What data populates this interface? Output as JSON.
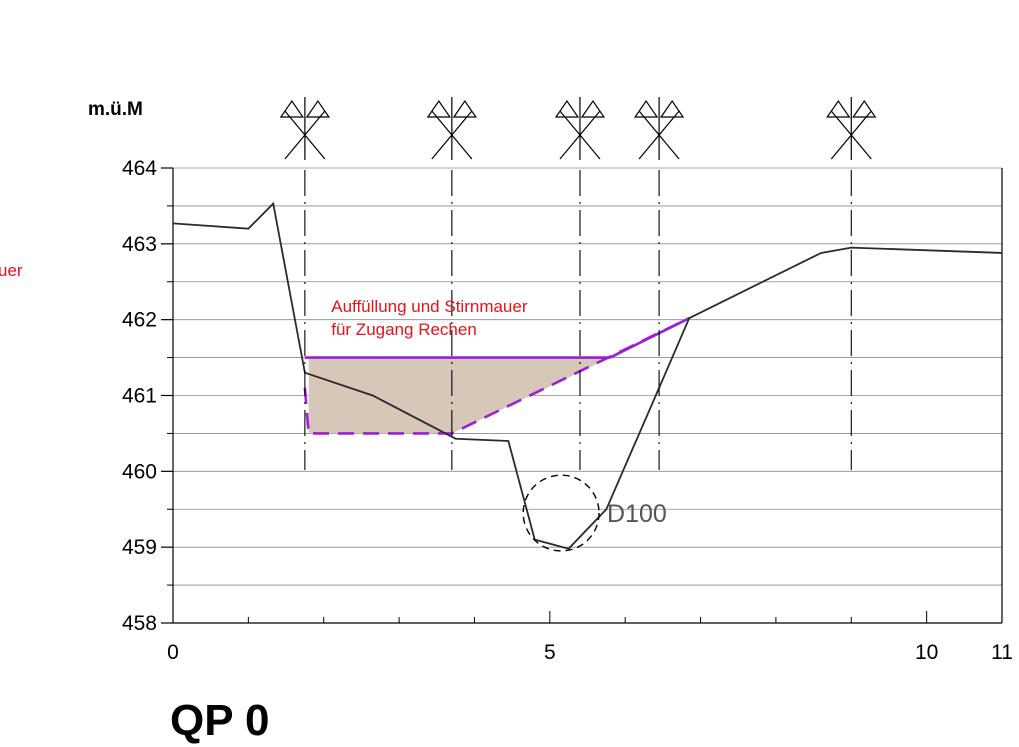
{
  "page": {
    "title": "QP 0",
    "cut_label_left": "uer"
  },
  "chart_data": {
    "type": "line",
    "ylabel": "m.ü.M",
    "xlabel": "",
    "xlim": [
      0,
      11
    ],
    "ylim": [
      458,
      464
    ],
    "x_ticks": [
      0,
      5,
      10,
      11
    ],
    "x_tick_labels": [
      "0",
      "5",
      "10",
      "11"
    ],
    "y_ticks": [
      458,
      459,
      460,
      461,
      462,
      463,
      464
    ],
    "y_tick_labels": [
      "458",
      "459",
      "460",
      "461",
      "462",
      "463",
      "464"
    ],
    "grid": true,
    "series": [
      {
        "role": "terrain",
        "color": "#2b2b2b",
        "x": [
          0,
          1.0,
          1.33,
          1.75,
          2.65,
          3.75,
          4.45,
          4.8,
          5.25,
          5.75,
          6.45,
          6.85,
          8.6,
          9.0,
          11.0
        ],
        "y": [
          463.27,
          463.2,
          463.53,
          461.3,
          461.0,
          460.43,
          460.4,
          459.1,
          458.98,
          459.5,
          461.1,
          462.02,
          462.88,
          462.95,
          462.88
        ]
      },
      {
        "role": "fill-top",
        "color": "#9b1fd6",
        "x": [
          1.75,
          5.8
        ],
        "y": [
          461.5,
          461.5
        ]
      },
      {
        "role": "fill-slope",
        "color": "#9b1fd6",
        "x": [
          5.8,
          6.85
        ],
        "y": [
          461.5,
          462.02
        ]
      },
      {
        "role": "fill-bottom-dashed",
        "color": "#9b1fd6",
        "x": [
          1.75,
          1.8,
          3.7,
          6.85
        ],
        "y": [
          461.1,
          460.5,
          460.5,
          462.02
        ]
      }
    ],
    "fill_area": {
      "color": "#d6c7b9",
      "x": [
        1.8,
        5.8,
        3.7,
        1.8
      ],
      "y": [
        461.5,
        461.5,
        460.5,
        460.5
      ]
    },
    "pile_markers_x": [
      1.75,
      3.7,
      5.4,
      6.45,
      9.0
    ],
    "annotations": [
      {
        "text": "Auffüllung und Stirnmauer",
        "x": 2.1,
        "y": 462.1
      },
      {
        "text": "für Zugang Rechen",
        "x": 2.1,
        "y": 461.8
      }
    ],
    "pipe": {
      "label": "D100",
      "x": 5.15,
      "y": 459.45,
      "r_data_y": 0.5
    }
  }
}
